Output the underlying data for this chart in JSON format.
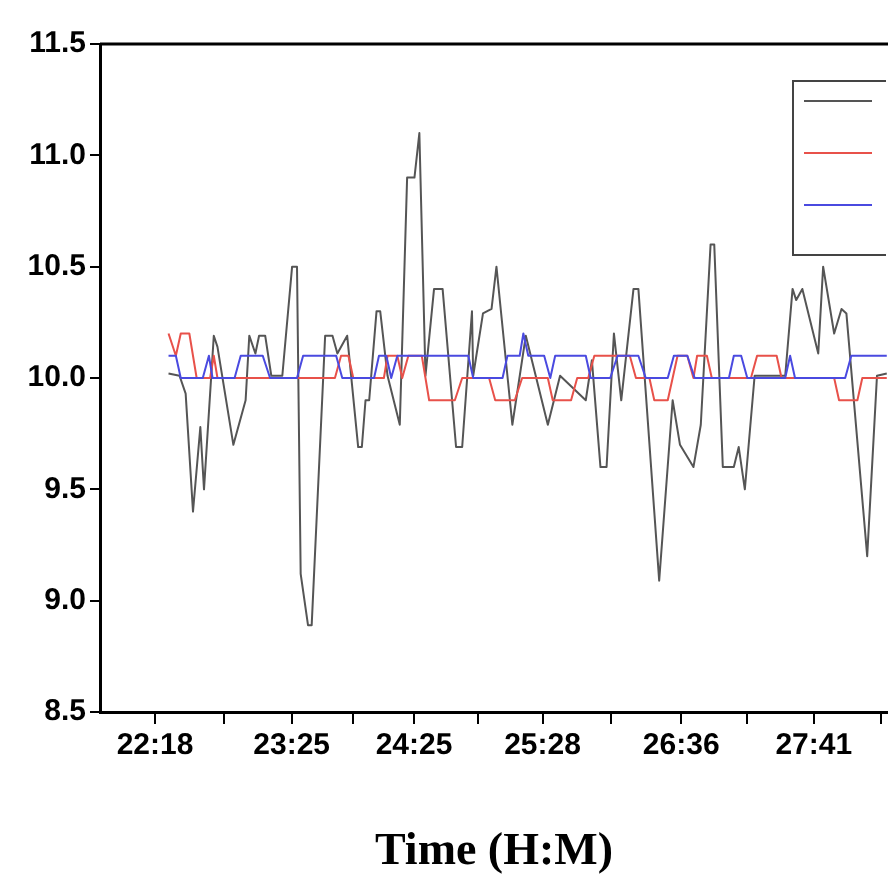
{
  "chart_data": {
    "type": "line",
    "xlabel": "Time (H:M)",
    "xlim": [
      21.85,
      28.29
    ],
    "xticks": [
      {
        "value": 22.3,
        "label": "22:18"
      },
      {
        "value": 22.86,
        "label": null
      },
      {
        "value": 23.4167,
        "label": "23:25"
      },
      {
        "value": 23.92,
        "label": null
      },
      {
        "value": 24.4167,
        "label": "24:25"
      },
      {
        "value": 24.94,
        "label": null
      },
      {
        "value": 25.4667,
        "label": "25:28"
      },
      {
        "value": 26.03,
        "label": null
      },
      {
        "value": 26.6,
        "label": "26:36"
      },
      {
        "value": 27.14,
        "label": null
      },
      {
        "value": 27.6833,
        "label": "27:41"
      },
      {
        "value": 28.23,
        "label": null
      }
    ],
    "ylim": [
      8.5,
      11.5
    ],
    "yticks": [
      {
        "value": 8.5,
        "label": "8.5"
      },
      {
        "value": 9,
        "label": "9.0"
      },
      {
        "value": 9.5,
        "label": "9.5"
      },
      {
        "value": 10,
        "label": "10.0"
      },
      {
        "value": 10.5,
        "label": "10.5"
      },
      {
        "value": 11,
        "label": "11.0"
      },
      {
        "value": 11.5,
        "label": "11.5"
      }
    ],
    "grid": false,
    "marker": "none",
    "line_style": "solid",
    "series": [
      {
        "color": "#555555",
        "x": [
          22.41,
          22.5,
          22.55,
          22.61,
          22.67,
          22.7,
          22.78,
          22.81,
          22.94,
          23.04,
          23.07,
          23.12,
          23.15,
          23.2,
          23.25,
          23.34,
          23.42,
          23.46,
          23.49,
          23.55,
          23.58,
          23.69,
          23.75,
          23.79,
          23.87,
          23.96,
          23.99,
          24.02,
          24.05,
          24.11,
          24.14,
          24.2,
          24.3,
          24.36,
          24.42,
          24.46,
          24.51,
          24.58,
          24.65,
          24.76,
          24.81,
          24.89,
          24.9,
          24.98,
          25.05,
          25.09,
          25.22,
          25.33,
          25.51,
          25.61,
          25.82,
          25.87,
          25.94,
          25.99,
          26.05,
          26.11,
          26.21,
          26.25,
          26.42,
          26.53,
          26.59,
          26.7,
          26.76,
          26.84,
          26.87,
          26.94,
          27.03,
          27.07,
          27.12,
          27.2,
          27.45,
          27.51,
          27.54,
          27.59,
          27.72,
          27.76,
          27.85,
          27.91,
          27.95,
          28.12,
          28.2,
          28.28
        ],
        "values": [
          10.02,
          10.01,
          9.93,
          9.4,
          9.78,
          9.5,
          10.19,
          10.14,
          9.7,
          9.9,
          10.19,
          10.11,
          10.19,
          10.19,
          10.01,
          10.01,
          10.5,
          10.5,
          9.12,
          8.89,
          8.89,
          10.19,
          10.19,
          10.11,
          10.19,
          9.69,
          9.69,
          9.9,
          9.9,
          10.3,
          10.3,
          10.01,
          9.79,
          10.9,
          10.9,
          11.1,
          10.01,
          10.4,
          10.4,
          9.69,
          9.69,
          10.3,
          10.01,
          10.29,
          10.31,
          10.5,
          9.79,
          10.19,
          9.79,
          10.01,
          9.9,
          10.08,
          9.6,
          9.6,
          10.2,
          9.9,
          10.4,
          10.4,
          9.09,
          9.9,
          9.7,
          9.6,
          9.79,
          10.6,
          10.6,
          9.6,
          9.6,
          9.69,
          9.5,
          10.01,
          10.01,
          10.4,
          10.35,
          10.4,
          10.11,
          10.5,
          10.2,
          10.31,
          10.29,
          9.2,
          10.01,
          10.02
        ]
      },
      {
        "color": "#e8514a",
        "x": [
          22.41,
          22.47,
          22.51,
          22.58,
          22.64,
          22.75,
          22.78,
          22.81,
          23.77,
          23.82,
          23.88,
          23.92,
          24.17,
          24.2,
          24.28,
          24.32,
          24.37,
          24.48,
          24.54,
          24.75,
          24.81,
          25.03,
          25.08,
          25.24,
          25.3,
          25.51,
          25.55,
          25.7,
          25.75,
          25.84,
          25.89,
          26.18,
          26.23,
          26.34,
          26.38,
          26.49,
          26.53,
          26.57,
          26.65,
          26.7,
          26.73,
          26.81,
          26.85,
          27.17,
          27.22,
          27.38,
          27.42,
          27.85,
          27.89,
          28.04,
          28.08,
          28.28
        ],
        "values": [
          10.2,
          10.1,
          10.2,
          10.2,
          10.0,
          10.0,
          10.1,
          10.0,
          10.0,
          10.1,
          10.1,
          10.0,
          10.0,
          10.1,
          10.1,
          10.0,
          10.1,
          10.1,
          9.9,
          9.9,
          10.0,
          10.0,
          9.9,
          9.9,
          10.0,
          10.0,
          9.9,
          9.9,
          10.0,
          10.0,
          10.1,
          10.1,
          10.0,
          10.0,
          9.9,
          9.9,
          10.0,
          10.1,
          10.1,
          10.0,
          10.1,
          10.1,
          10.0,
          10.0,
          10.1,
          10.1,
          10.0,
          10.0,
          9.9,
          9.9,
          10.0,
          10.0
        ]
      },
      {
        "color": "#4a4ae0",
        "x": [
          22.41,
          22.47,
          22.51,
          22.69,
          22.74,
          22.77,
          22.95,
          23.0,
          23.18,
          23.24,
          23.46,
          23.51,
          23.78,
          23.83,
          24.09,
          24.13,
          24.19,
          24.23,
          24.28,
          24.86,
          24.9,
          25.14,
          25.18,
          25.28,
          25.31,
          25.35,
          25.48,
          25.53,
          25.57,
          25.82,
          25.86,
          26.02,
          26.08,
          26.25,
          26.31,
          26.49,
          26.54,
          26.65,
          26.71,
          26.99,
          27.03,
          27.09,
          27.14,
          27.45,
          27.49,
          27.53,
          27.94,
          27.99,
          28.28
        ],
        "values": [
          10.1,
          10.1,
          10.0,
          10.0,
          10.1,
          10.0,
          10.0,
          10.1,
          10.1,
          10.0,
          10.0,
          10.1,
          10.1,
          10.0,
          10.0,
          10.1,
          10.1,
          10.0,
          10.1,
          10.1,
          10.0,
          10.0,
          10.1,
          10.1,
          10.2,
          10.1,
          10.1,
          10.0,
          10.1,
          10.1,
          10.0,
          10.0,
          10.1,
          10.1,
          10.0,
          10.0,
          10.1,
          10.1,
          10.0,
          10.0,
          10.1,
          10.1,
          10.0,
          10.0,
          10.1,
          10.0,
          10.0,
          10.1,
          10.1
        ]
      }
    ]
  }
}
